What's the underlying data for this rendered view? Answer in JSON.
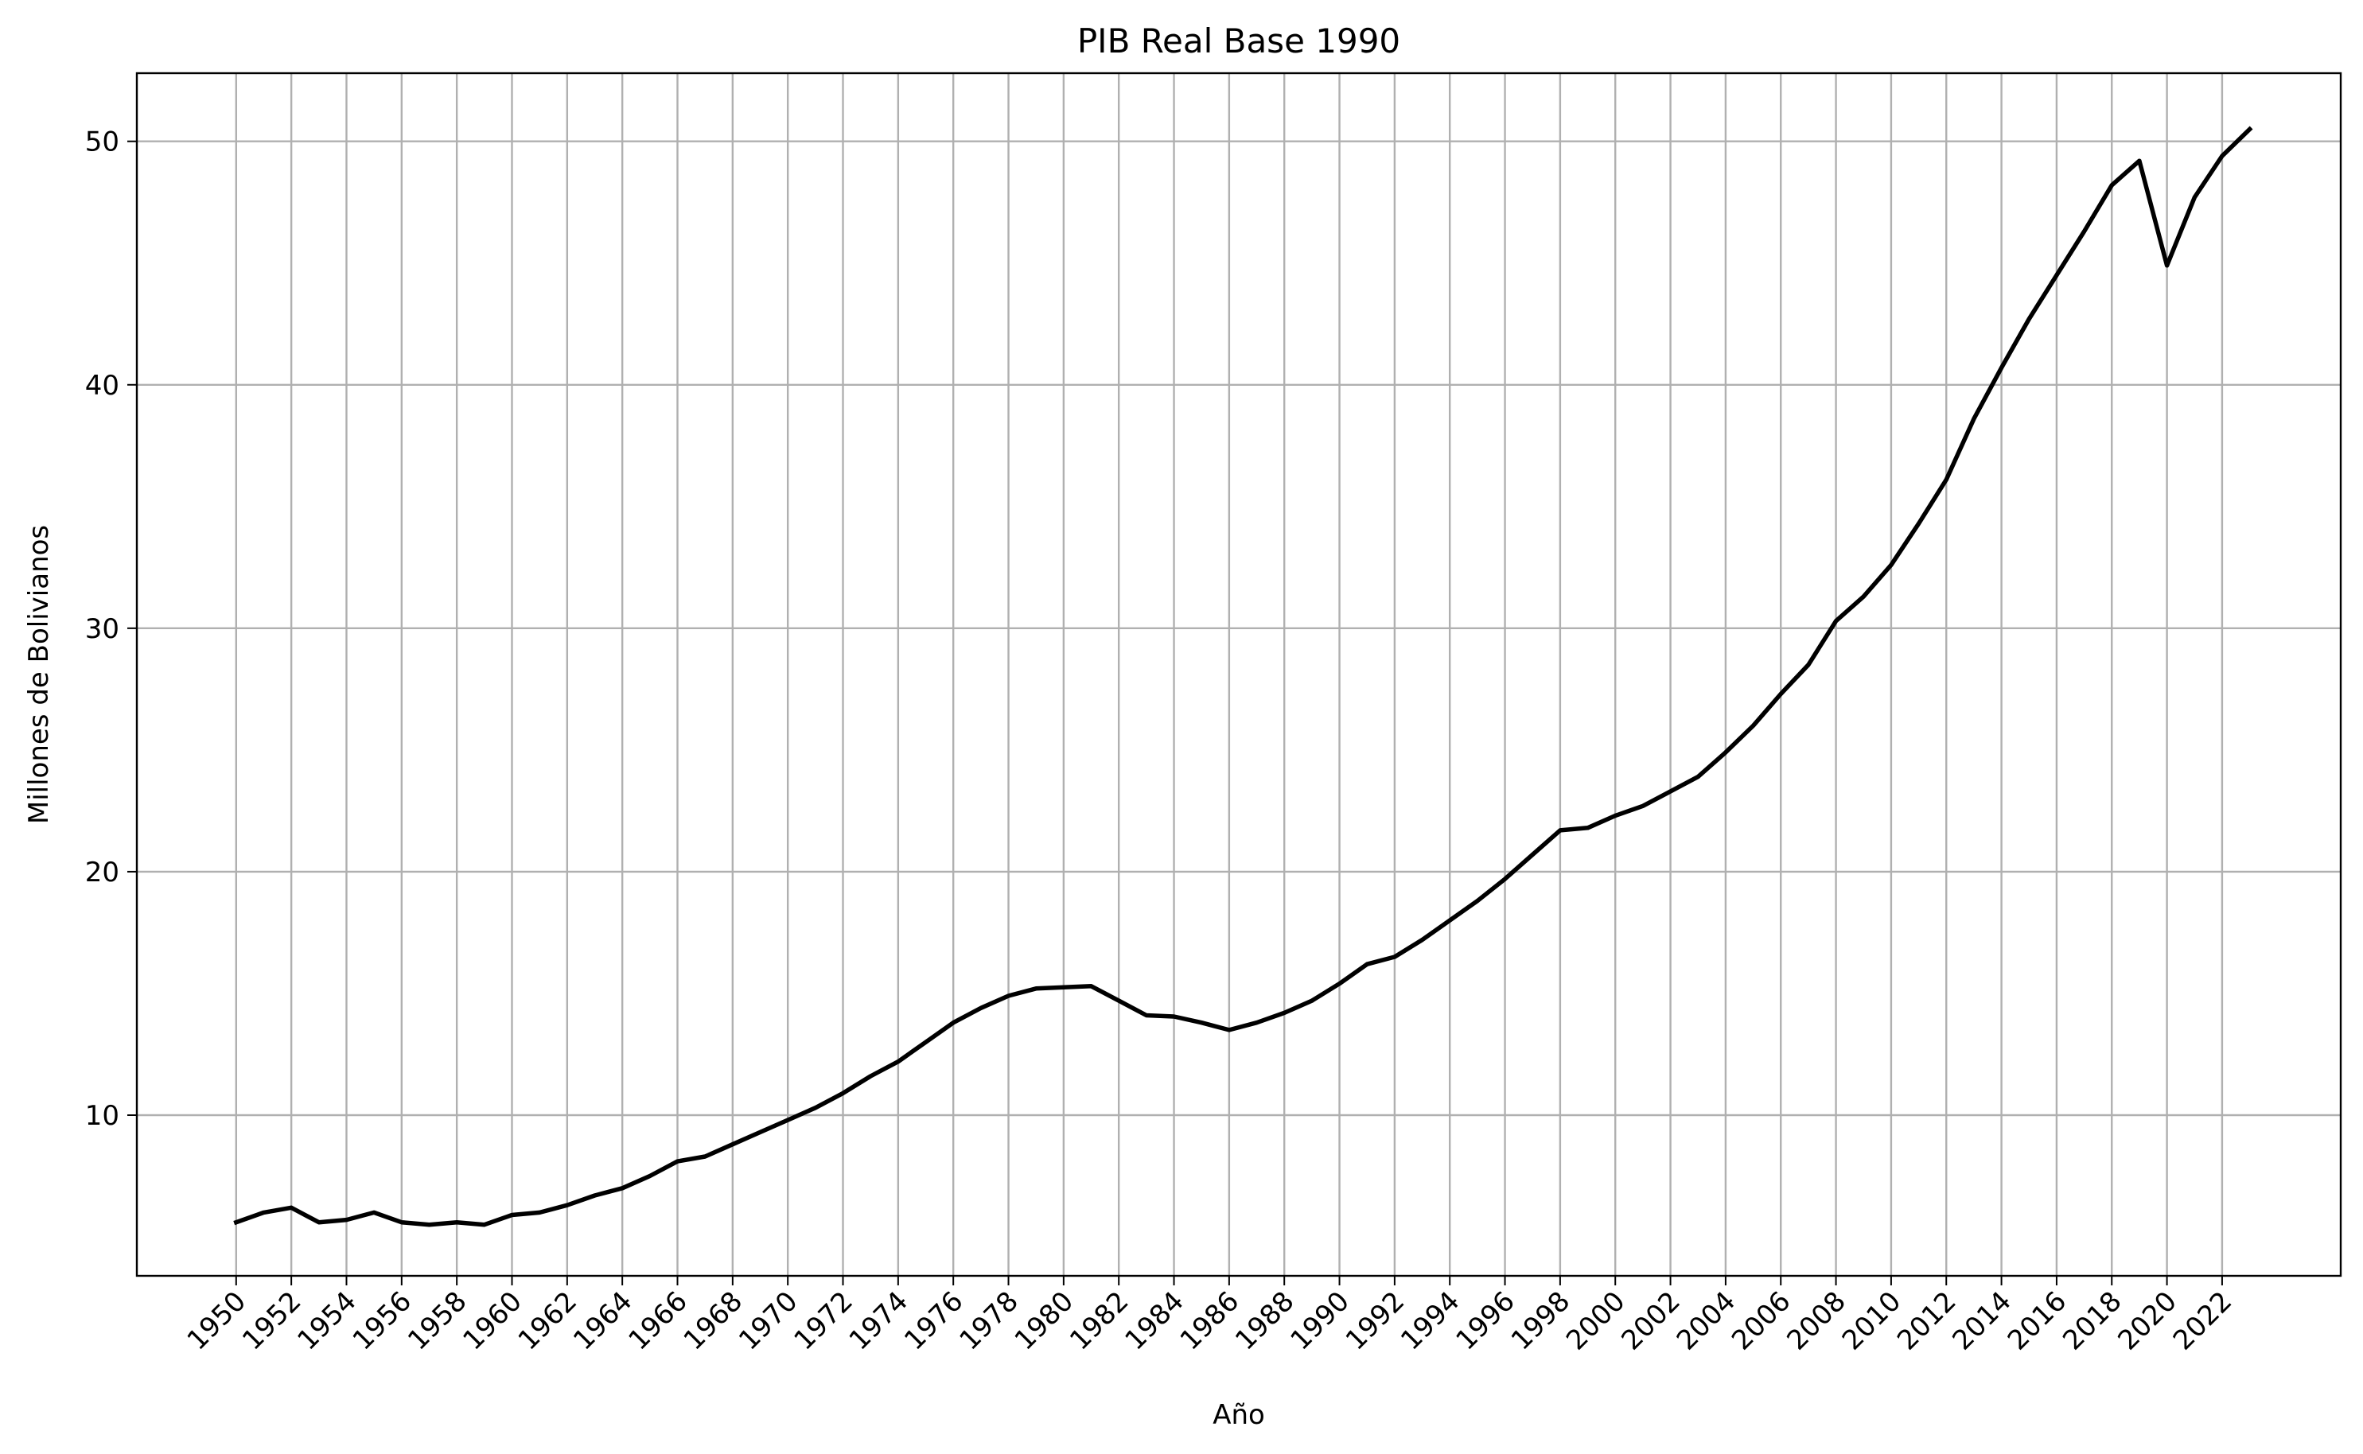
{
  "chart_data": {
    "type": "line",
    "title": "PIB Real Base 1990",
    "xlabel": "Año",
    "ylabel": "Millones de Bolivianos",
    "xlim": [
      1946.4,
      2026.3
    ],
    "ylim": [
      3.4,
      52.8
    ],
    "grid": true,
    "legend": "none",
    "x_ticks": [
      1950,
      1952,
      1954,
      1956,
      1958,
      1960,
      1962,
      1964,
      1966,
      1968,
      1970,
      1972,
      1974,
      1976,
      1978,
      1980,
      1982,
      1984,
      1986,
      1988,
      1990,
      1992,
      1994,
      1996,
      1998,
      2000,
      2002,
      2004,
      2006,
      2008,
      2010,
      2012,
      2014,
      2016,
      2018,
      2020,
      2022
    ],
    "y_ticks": [
      10,
      20,
      30,
      40,
      50
    ],
    "series": [
      {
        "color": "#000000",
        "x": [
          1950,
          1951,
          1952,
          1953,
          1954,
          1955,
          1956,
          1957,
          1958,
          1959,
          1960,
          1961,
          1962,
          1963,
          1964,
          1965,
          1966,
          1967,
          1968,
          1969,
          1970,
          1971,
          1972,
          1973,
          1974,
          1975,
          1976,
          1977,
          1978,
          1979,
          1980,
          1981,
          1982,
          1983,
          1984,
          1985,
          1986,
          1987,
          1988,
          1989,
          1990,
          1991,
          1992,
          1993,
          1994,
          1995,
          1996,
          1997,
          1998,
          1999,
          2000,
          2001,
          2002,
          2003,
          2004,
          2005,
          2006,
          2007,
          2008,
          2009,
          2010,
          2011,
          2012,
          2013,
          2014,
          2015,
          2016,
          2017,
          2018,
          2019,
          2020,
          2021,
          2022,
          2023
        ],
        "values": [
          5.6,
          6.0,
          6.2,
          5.6,
          5.7,
          6.0,
          5.6,
          5.5,
          5.6,
          5.5,
          5.9,
          6.0,
          6.3,
          6.7,
          7.0,
          7.5,
          8.1,
          8.3,
          8.8,
          9.3,
          9.8,
          10.3,
          10.9,
          11.6,
          12.2,
          13.0,
          13.8,
          14.4,
          14.9,
          15.2,
          15.25,
          15.3,
          14.7,
          14.1,
          14.05,
          13.8,
          13.5,
          13.8,
          14.2,
          14.7,
          15.4,
          16.2,
          16.5,
          17.2,
          18.0,
          18.8,
          19.7,
          20.7,
          21.7,
          21.8,
          22.3,
          22.7,
          23.3,
          23.9,
          24.9,
          26.0,
          27.3,
          28.5,
          30.3,
          31.3,
          32.6,
          34.3,
          36.1,
          38.6,
          40.7,
          42.7,
          44.5,
          46.3,
          48.2,
          49.2,
          44.9,
          47.7,
          49.4,
          50.5
        ]
      }
    ]
  }
}
